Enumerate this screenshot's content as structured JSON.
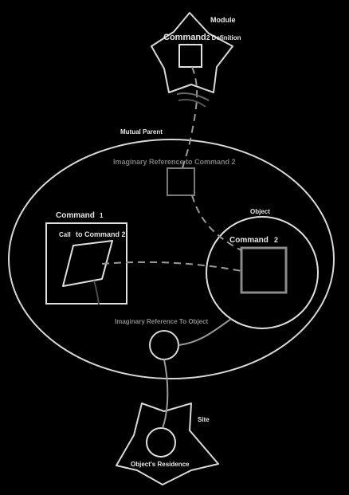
{
  "labels": {
    "module": "Module",
    "command_big": "Command",
    "definition_suffix": "2 Definition",
    "mutual_parent": "Mutual Parent",
    "imaginary_ref_cmd2": "Imaginary Reference to Command 2",
    "object": "Object",
    "command1_main": "Command",
    "command1_num": "1",
    "call_prefix": "Call",
    "call_rest": "to Command 2",
    "command2_main": "Command",
    "command2_num": "2",
    "imaginary_ref_object": "Imaginary Reference To Object",
    "site": "Site",
    "objects_residence": "Object's Residence"
  },
  "colors": {
    "background": "#000000",
    "stroke": "#d8d8d8",
    "stroke_dim": "#9a9a9a",
    "dim_text": "#7a7a7a",
    "text": "#e6e6e6"
  }
}
